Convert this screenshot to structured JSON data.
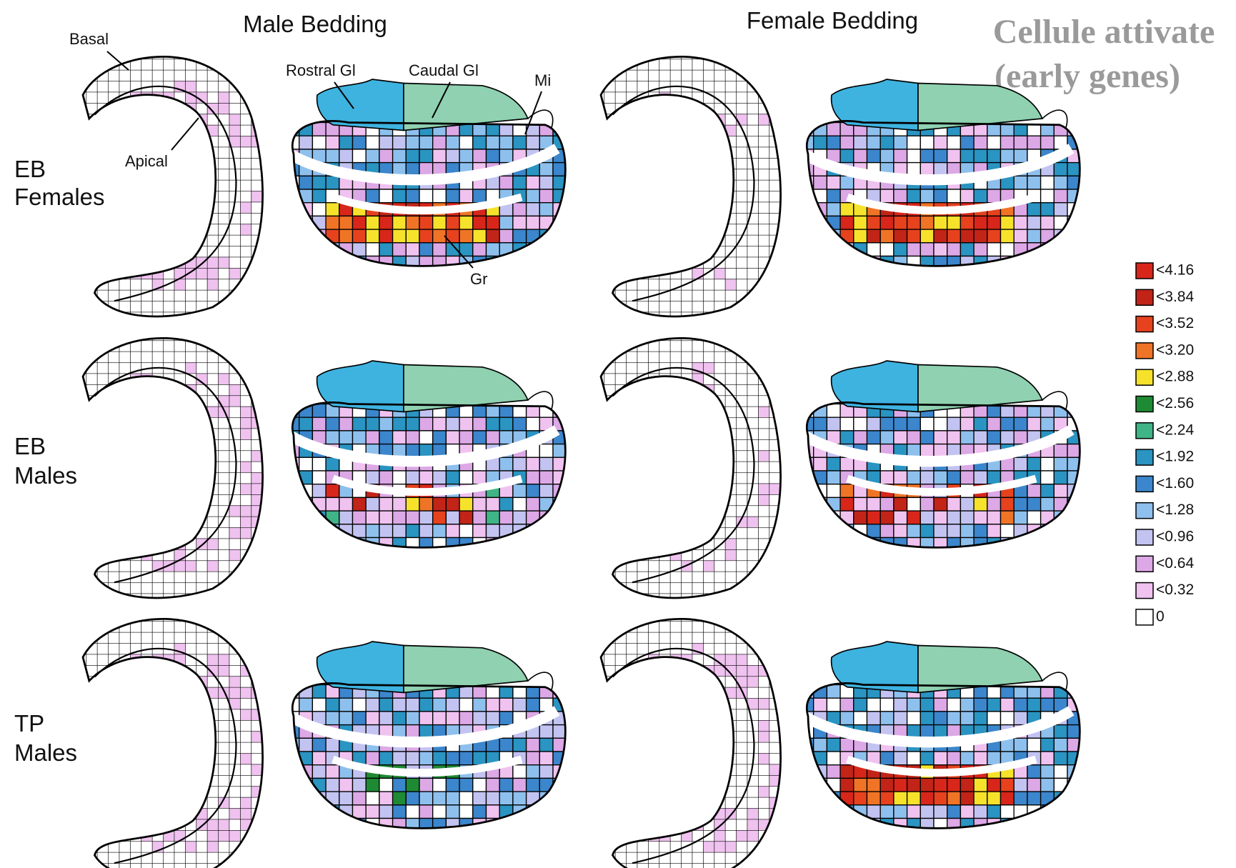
{
  "header": {
    "columns": [
      "Male Bedding",
      "Female Bedding"
    ],
    "title_lines": [
      "Cellule attivate",
      "(early genes)"
    ]
  },
  "rows": [
    {
      "label_lines": [
        "EB",
        "Females"
      ]
    },
    {
      "label_lines": [
        "EB",
        "Males"
      ]
    },
    {
      "label_lines": [
        "TP",
        "Males"
      ]
    }
  ],
  "annotations": {
    "basal": "Basal",
    "apical": "Apical",
    "rostral": "Rostral Gl",
    "caudal": "Caudal Gl",
    "mi": "Mi",
    "gr": "Gr"
  },
  "legend": [
    {
      "label": "<4.16",
      "color": "#d8261a"
    },
    {
      "label": "<3.84",
      "color": "#c22418"
    },
    {
      "label": "<3.52",
      "color": "#e6421e"
    },
    {
      "label": "<3.20",
      "color": "#f07426"
    },
    {
      "label": "<2.88",
      "color": "#f6e22a"
    },
    {
      "label": "<2.56",
      "color": "#1f8a34"
    },
    {
      "label": "<2.24",
      "color": "#3fb487"
    },
    {
      "label": "<1.92",
      "color": "#2a94c2"
    },
    {
      "label": "<1.60",
      "color": "#3b86cc"
    },
    {
      "label": "<1.28",
      "color": "#8ec0ee"
    },
    {
      "label": "<0.96",
      "color": "#c3c3f2"
    },
    {
      "label": "<0.64",
      "color": "#dca8e6"
    },
    {
      "label": "<0.32",
      "color": "#f0c2f0"
    },
    {
      "label": "0",
      "color": "#ffffff"
    }
  ]
}
